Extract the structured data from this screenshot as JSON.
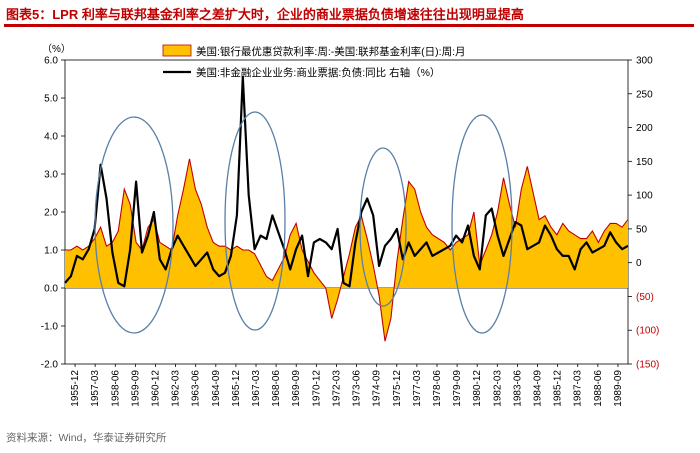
{
  "figure": {
    "title": "图表5：LPR 利率与联邦基金利率之差扩大时，企业的商业票据负债增速往往出现明显提高",
    "source": "资料来源：Wind，华泰证券研究所"
  },
  "chart_data": {
    "type": "area+line",
    "left_axis": {
      "unit_label": "（%）",
      "ticks": [
        "6.0",
        "5.0",
        "4.0",
        "3.0",
        "2.0",
        "1.0",
        "0.0",
        "-1.0",
        "-2.0"
      ],
      "range": [
        -2.0,
        6.0
      ]
    },
    "right_axis": {
      "ticks": [
        "300",
        "250",
        "200",
        "150",
        "100",
        "50",
        "0",
        "(50)",
        "(100)",
        "(150)"
      ],
      "range": [
        -150,
        300
      ]
    },
    "x_tick_labels": [
      "1955-12",
      "1957-03",
      "1958-06",
      "1959-09",
      "1960-12",
      "1962-03",
      "1963-06",
      "1964-09",
      "1965-12",
      "1967-03",
      "1968-06",
      "1969-09",
      "1970-12",
      "1972-03",
      "1973-06",
      "1974-09",
      "1975-12",
      "1977-03",
      "1978-06",
      "1979-09",
      "1980-12",
      "1982-03",
      "1983-06",
      "1984-09",
      "1985-12",
      "1987-03",
      "1988-06",
      "1989-09"
    ],
    "series": [
      {
        "name": "美国:银行最优惠贷款利率:周:-美国:联邦基金利率(日):周:月",
        "axis": "left",
        "color": "#ffc000",
        "edge_color": "#c00000",
        "values": [
          1.0,
          1.0,
          1.1,
          1.0,
          1.1,
          1.3,
          1.6,
          1.1,
          1.2,
          1.5,
          2.6,
          2.2,
          1.2,
          1.0,
          1.6,
          1.8,
          1.2,
          1.1,
          1.0,
          1.9,
          2.6,
          3.4,
          2.6,
          2.2,
          1.6,
          1.2,
          1.1,
          1.1,
          1.0,
          1.1,
          1.0,
          1.0,
          0.9,
          0.6,
          0.3,
          0.2,
          0.5,
          0.8,
          1.4,
          1.7,
          1.0,
          0.7,
          0.4,
          0.2,
          0.0,
          -0.8,
          -0.3,
          0.3,
          0.9,
          1.6,
          1.9,
          1.3,
          0.6,
          -0.2,
          -1.4,
          -0.8,
          0.7,
          1.8,
          2.8,
          2.6,
          2.0,
          1.6,
          1.4,
          1.3,
          1.2,
          1.0,
          1.2,
          1.3,
          1.4,
          2.0,
          0.6,
          1.0,
          1.4,
          2.0,
          2.9,
          2.2,
          1.6,
          2.6,
          3.2,
          2.5,
          1.8,
          1.9,
          1.6,
          1.4,
          1.7,
          1.5,
          1.4,
          1.3,
          1.3,
          1.5,
          1.2,
          1.5,
          1.7,
          1.7,
          1.6,
          1.8
        ]
      },
      {
        "name": "美国:非金融企业业务:商业票据:负债:同比 右轴（%）",
        "axis": "right",
        "color": "#000000",
        "values": [
          -30,
          -20,
          10,
          5,
          20,
          50,
          145,
          95,
          15,
          -30,
          -35,
          20,
          120,
          15,
          40,
          75,
          5,
          -10,
          20,
          40,
          25,
          10,
          -5,
          5,
          15,
          -10,
          -20,
          -15,
          10,
          70,
          275,
          100,
          20,
          40,
          35,
          70,
          45,
          20,
          -10,
          20,
          40,
          -20,
          30,
          35,
          30,
          20,
          50,
          -30,
          -35,
          30,
          75,
          95,
          70,
          -5,
          25,
          35,
          50,
          5,
          30,
          10,
          20,
          30,
          10,
          15,
          20,
          25,
          40,
          30,
          55,
          10,
          -10,
          70,
          80,
          40,
          10,
          35,
          60,
          55,
          20,
          25,
          30,
          55,
          40,
          20,
          10,
          10,
          -10,
          20,
          30,
          15,
          20,
          25,
          45,
          30,
          20,
          25
        ]
      }
    ],
    "annotations": [
      {
        "type": "ellipse",
        "label": "highlight around 1958-1961"
      },
      {
        "type": "ellipse",
        "label": "highlight around 1966-1969"
      },
      {
        "type": "ellipse",
        "label": "highlight around 1973-1975"
      },
      {
        "type": "ellipse",
        "label": "highlight around 1979-1982"
      }
    ]
  }
}
